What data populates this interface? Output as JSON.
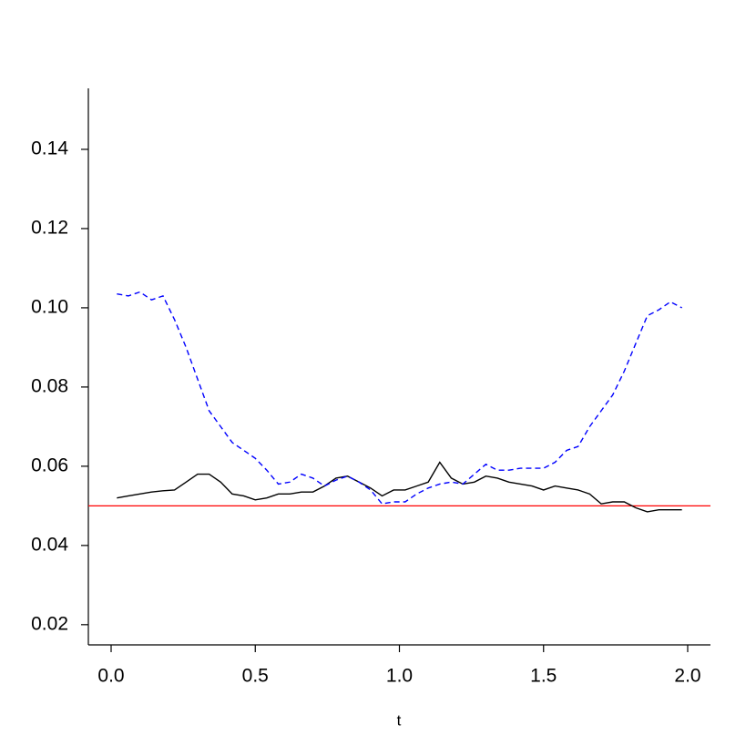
{
  "chart_data": {
    "type": "line",
    "x_label": "t",
    "x": [
      0.02,
      0.06,
      0.1,
      0.14,
      0.18,
      0.22,
      0.26,
      0.3,
      0.34,
      0.38,
      0.42,
      0.46,
      0.5,
      0.54,
      0.58,
      0.62,
      0.66,
      0.7,
      0.74,
      0.78,
      0.82,
      0.86,
      0.9,
      0.94,
      0.98,
      1.02,
      1.06,
      1.1,
      1.14,
      1.18,
      1.22,
      1.26,
      1.3,
      1.34,
      1.38,
      1.42,
      1.46,
      1.5,
      1.54,
      1.58,
      1.62,
      1.66,
      1.7,
      1.74,
      1.78,
      1.82,
      1.86,
      1.9,
      1.94,
      1.98
    ],
    "series": [
      {
        "color": "#000000",
        "linestyle": "solid",
        "values": [
          0.052,
          0.0525,
          0.053,
          0.0535,
          0.0538,
          0.054,
          0.056,
          0.058,
          0.058,
          0.056,
          0.053,
          0.0525,
          0.0515,
          0.052,
          0.053,
          0.053,
          0.0535,
          0.0535,
          0.055,
          0.057,
          0.0575,
          0.056,
          0.0545,
          0.0525,
          0.054,
          0.054,
          0.055,
          0.056,
          0.061,
          0.057,
          0.0555,
          0.056,
          0.0575,
          0.057,
          0.056,
          0.0555,
          0.055,
          0.054,
          0.055,
          0.0545,
          0.054,
          0.053,
          0.0505,
          0.051,
          0.051,
          0.0495,
          0.0485,
          0.049,
          0.049,
          0.049
        ]
      },
      {
        "color": "#0000ff",
        "linestyle": "dashed",
        "values": [
          0.1035,
          0.103,
          0.104,
          0.102,
          0.103,
          0.097,
          0.09,
          0.082,
          0.074,
          0.07,
          0.066,
          0.064,
          0.062,
          0.059,
          0.0555,
          0.056,
          0.058,
          0.057,
          0.055,
          0.0565,
          0.0575,
          0.056,
          0.054,
          0.0505,
          0.051,
          0.051,
          0.053,
          0.0545,
          0.0555,
          0.056,
          0.0555,
          0.058,
          0.0605,
          0.059,
          0.059,
          0.0595,
          0.0595,
          0.0595,
          0.061,
          0.064,
          0.065,
          0.07,
          0.074,
          0.078,
          0.084,
          0.091,
          0.098,
          0.0995,
          0.1015,
          0.1
        ]
      }
    ],
    "hline": {
      "value": 0.05,
      "color": "#ff0000"
    },
    "xlim": [
      -0.079,
      2.079
    ],
    "ylim": [
      0.0149,
      0.1554
    ],
    "xticks": [
      {
        "value": 0,
        "label": "0.0"
      },
      0.5,
      {
        "value": 1,
        "label": "1.0"
      },
      1.5,
      {
        "value": 2,
        "label": "2.0"
      }
    ],
    "yticks": [
      0.02,
      0.04,
      0.06,
      0.08,
      {
        "value": 0.1,
        "label": "0.10"
      },
      0.12,
      0.14
    ]
  }
}
